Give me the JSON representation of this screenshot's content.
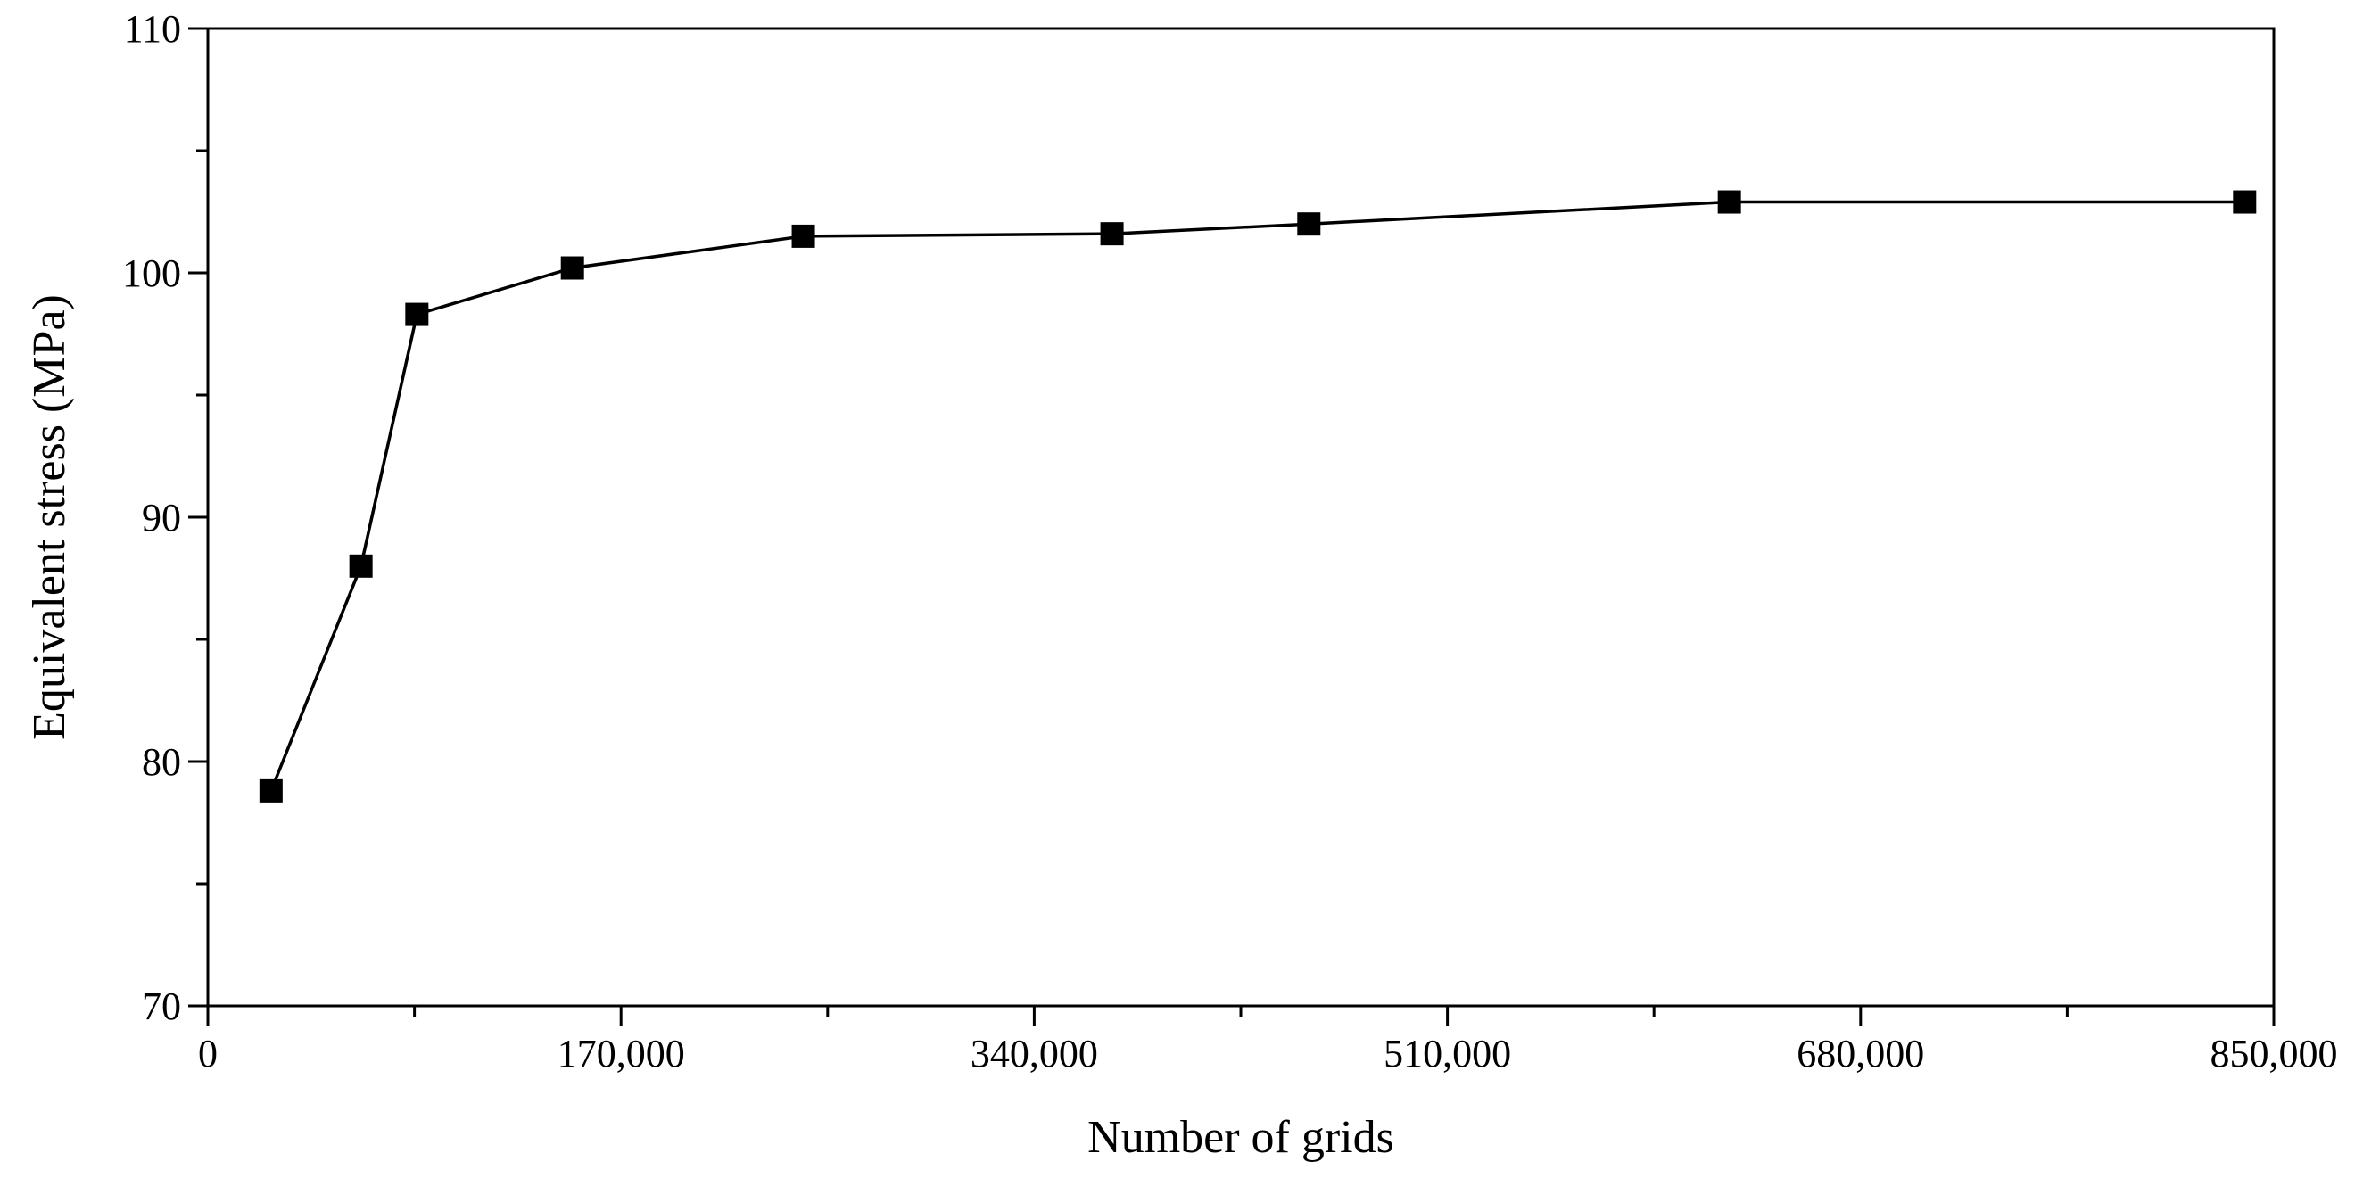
{
  "chart_data": {
    "type": "line",
    "title": "",
    "xlabel": "Number of grids",
    "ylabel": "Equivalent stress (MPa)",
    "xlim": [
      0,
      850000
    ],
    "ylim": [
      70,
      110
    ],
    "xticks": [
      0,
      170000,
      340000,
      510000,
      680000,
      850000
    ],
    "xtick_labels": [
      "0",
      "170,000",
      "340,000",
      "510,000",
      "680,000",
      "850,000"
    ],
    "yticks": [
      70,
      80,
      90,
      100,
      110
    ],
    "ytick_labels": [
      "70",
      "80",
      "90",
      "100",
      "110"
    ],
    "grid": false,
    "marker": "square",
    "series": [
      {
        "x": [
          26000,
          63000,
          86000,
          150000,
          245000,
          372000,
          453000,
          626000,
          838000
        ],
        "y": [
          78.8,
          88.0,
          98.3,
          100.2,
          101.5,
          101.6,
          102.0,
          102.9,
          102.9
        ]
      }
    ]
  }
}
